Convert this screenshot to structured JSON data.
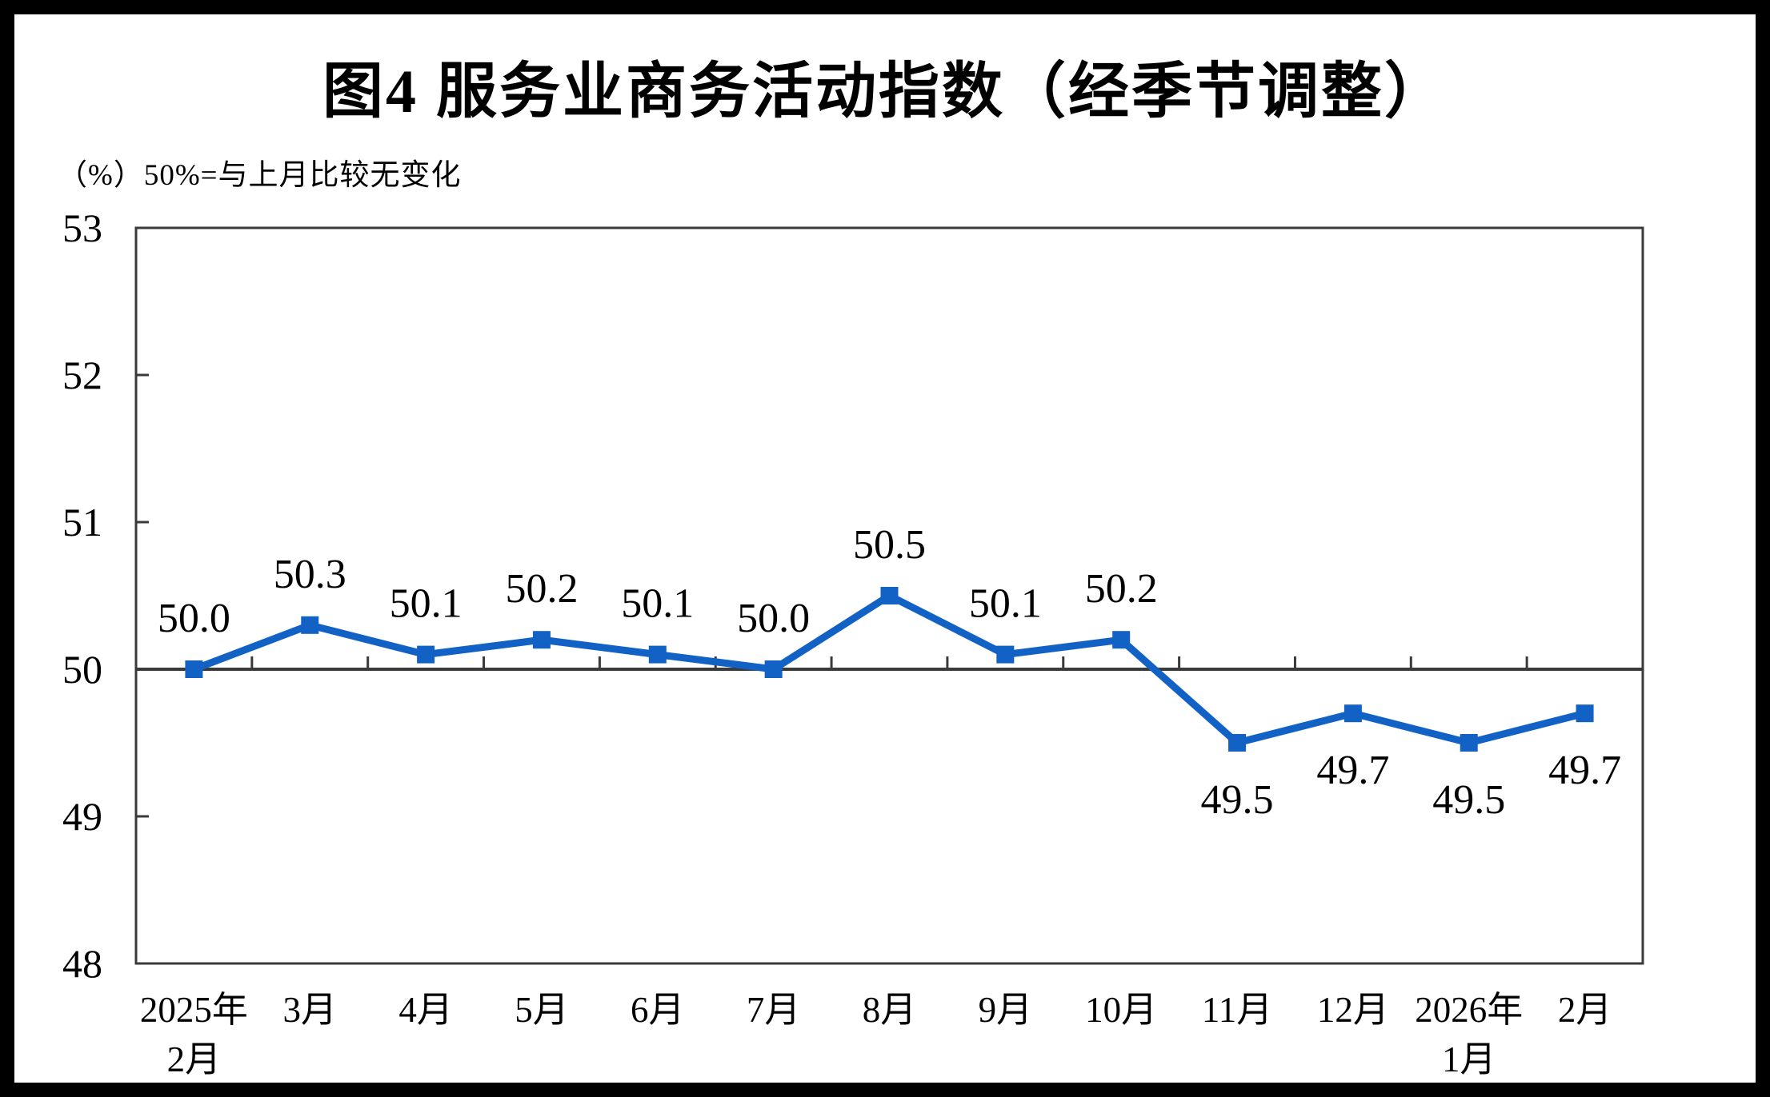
{
  "chart_data": {
    "type": "line",
    "title": "图4  服务业商务活动指数（经季节调整）",
    "subtitle": "（%）50%=与上月比较无变化",
    "categories": [
      "2025年\n2月",
      "3月",
      "4月",
      "5月",
      "6月",
      "7月",
      "8月",
      "9月",
      "10月",
      "11月",
      "12月",
      "2026年\n1月",
      "2月"
    ],
    "values": [
      50.0,
      50.3,
      50.1,
      50.2,
      50.1,
      50.0,
      50.5,
      50.1,
      50.2,
      49.5,
      49.7,
      49.5,
      49.7
    ],
    "value_labels": [
      "50.0",
      "50.3",
      "50.1",
      "50.2",
      "50.1",
      "50.0",
      "50.5",
      "50.1",
      "50.2",
      "49.5",
      "49.7",
      "49.5",
      "49.7"
    ],
    "ylim": [
      48,
      53
    ],
    "yticks": [
      48,
      49,
      50,
      51,
      52,
      53
    ],
    "ytick_labels": [
      "48",
      "49",
      "50",
      "51",
      "52",
      "53"
    ],
    "baseline_value": 50,
    "grid": false,
    "legend": "none",
    "label_rule": "labels above points when value >= 50, below points when value < 50",
    "colors": {
      "series": "#1262c6",
      "axis": "#3a3a3a",
      "text": "#000000",
      "background": "#ffffff",
      "frame": "#000000"
    }
  }
}
